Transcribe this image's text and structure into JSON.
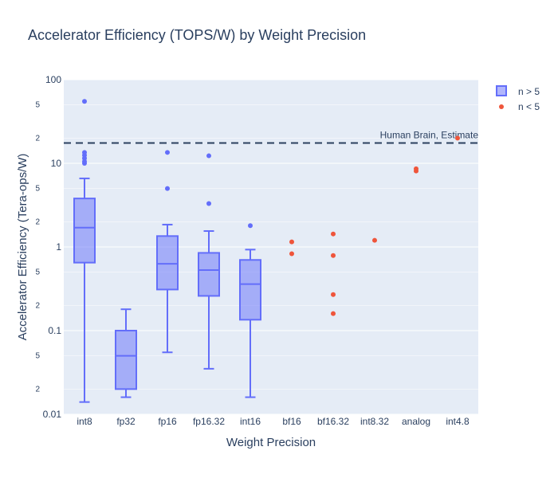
{
  "chart_data": {
    "type": "box",
    "title": "Accelerator Efficiency (TOPS/W) by Weight Precision",
    "xlabel": "Weight Precision",
    "ylabel": "Accelerator Efficiency (Tera-ops/W)",
    "y_scale": "log",
    "ylim": [
      0.01,
      100
    ],
    "y_major_ticks": [
      {
        "value": 0.01,
        "label": "0.01"
      },
      {
        "value": 0.1,
        "label": "0.1"
      },
      {
        "value": 1,
        "label": "1"
      },
      {
        "value": 10,
        "label": "10"
      },
      {
        "value": 100,
        "label": "100"
      }
    ],
    "y_minor_ticks": [
      {
        "value": 0.02,
        "label": "2"
      },
      {
        "value": 0.05,
        "label": "5"
      },
      {
        "value": 0.2,
        "label": "2"
      },
      {
        "value": 0.5,
        "label": "5"
      },
      {
        "value": 2,
        "label": "2"
      },
      {
        "value": 5,
        "label": "5"
      },
      {
        "value": 20,
        "label": "2"
      },
      {
        "value": 50,
        "label": "5"
      }
    ],
    "categories": [
      "int8",
      "fp32",
      "fp16",
      "fp16.32",
      "int16",
      "bf16",
      "bf16.32",
      "int8.32",
      "analog",
      "int4.8"
    ],
    "grid": true,
    "legend_position": "top-right",
    "legend": [
      {
        "label": "n > 5",
        "symbol": "box",
        "color": "#636efa"
      },
      {
        "label": "n < 5",
        "symbol": "dot",
        "color": "#ef553b"
      }
    ],
    "reference_line": {
      "y": 17.5,
      "label": "Human Brain, Estimate",
      "color": "#2a3f5f",
      "style": "dashed"
    },
    "series": [
      {
        "name": "n > 5",
        "color": "#636efa",
        "boxes": [
          {
            "category": "int8",
            "lowerfence": 0.014,
            "q1": 0.65,
            "median": 1.7,
            "q3": 3.8,
            "upperfence": 6.6,
            "outliers": [
              10,
              10.5,
              11.5,
              12.5,
              13.5,
              55
            ]
          },
          {
            "category": "fp32",
            "lowerfence": 0.016,
            "q1": 0.02,
            "median": 0.05,
            "q3": 0.1,
            "upperfence": 0.18,
            "outliers": []
          },
          {
            "category": "fp16",
            "lowerfence": 0.055,
            "q1": 0.31,
            "median": 0.63,
            "q3": 1.35,
            "upperfence": 1.85,
            "outliers": [
              5.0,
              13.5
            ]
          },
          {
            "category": "fp16.32",
            "lowerfence": 0.035,
            "q1": 0.26,
            "median": 0.53,
            "q3": 0.85,
            "upperfence": 1.55,
            "outliers": [
              3.3,
              12.3
            ]
          },
          {
            "category": "int16",
            "lowerfence": 0.016,
            "q1": 0.135,
            "median": 0.36,
            "q3": 0.7,
            "upperfence": 0.93,
            "outliers": [
              1.8
            ]
          }
        ]
      },
      {
        "name": "n < 5",
        "color": "#ef553b",
        "points": [
          {
            "category": "bf16",
            "values": [
              0.83,
              1.15
            ]
          },
          {
            "category": "bf16.32",
            "values": [
              0.16,
              0.27,
              0.79,
              1.43
            ]
          },
          {
            "category": "int8.32",
            "values": [
              1.2
            ]
          },
          {
            "category": "analog",
            "values": [
              8.1,
              8.6
            ]
          },
          {
            "category": "int4.8",
            "values": [
              20
            ]
          }
        ]
      }
    ]
  }
}
